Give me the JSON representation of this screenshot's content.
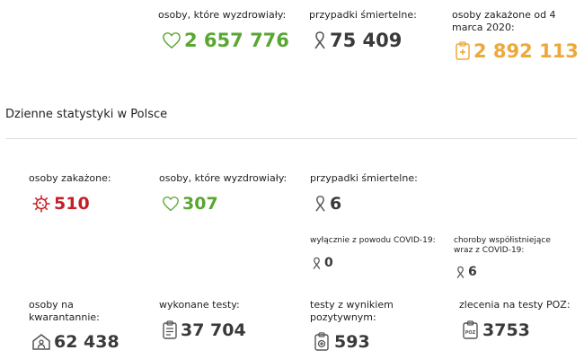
{
  "summary": {
    "recovered": {
      "label": "osoby, które wyzdrowiały:",
      "value": "2 657 776"
    },
    "deaths": {
      "label": "przypadki śmiertelne:",
      "value": "75 409"
    },
    "infected": {
      "label": "osoby zakażone od 4 marca 2020:",
      "value": "2 892 113"
    }
  },
  "daily": {
    "title": "Dzienne statystyki w Polsce",
    "infected": {
      "label": "osoby zakażone:",
      "value": "510"
    },
    "recovered": {
      "label": "osoby, które wyzdrowiały:",
      "value": "307"
    },
    "deaths": {
      "label": "przypadki śmiertelne:",
      "value": "6"
    },
    "deaths_covid_only": {
      "label": "wyłącznie z powodu COVID-19:",
      "value": "0"
    },
    "deaths_comorbid": {
      "label": "choroby współistniejące wraz z COVID-19:",
      "value": "6"
    },
    "quarantine": {
      "label": "osoby na kwarantannie:",
      "value": "62 438"
    },
    "tests": {
      "label": "wykonane testy:",
      "value": "37 704"
    },
    "positive_tests": {
      "label": "testy z wynikiem pozytywnym:",
      "value": "593"
    },
    "poz_orders": {
      "label": "zlecenia na testy POZ:",
      "value": "3753"
    }
  },
  "colors": {
    "recovered": "#5aa632",
    "infected": "#eda83a",
    "daily_infected": "#c51f26",
    "neutral": "#3a3a3a"
  },
  "icons": [
    "heart-icon",
    "ribbon-icon",
    "clipboard-cross-icon",
    "virus-icon",
    "house-person-icon",
    "test-clipboard-icon",
    "positive-test-icon",
    "poz-clipboard-icon"
  ]
}
